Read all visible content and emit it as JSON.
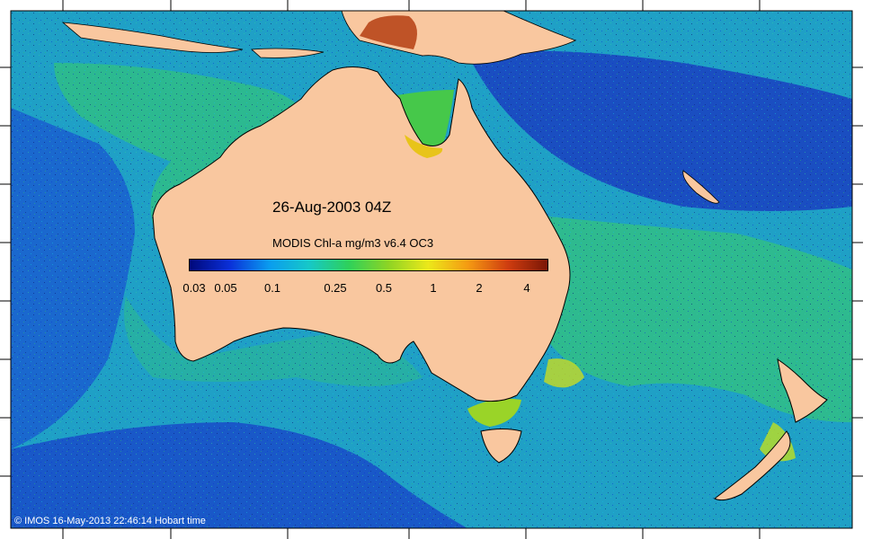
{
  "date_label": "26-Aug-2003 04Z",
  "colorbar": {
    "title": "MODIS Chl-a mg/m3 v6.4 OC3",
    "ticks": [
      "0.03",
      "0.05",
      "0.1",
      "0.25",
      "0.5",
      "1",
      "2",
      "4"
    ],
    "colors": [
      "#00087a",
      "#0a2fd8",
      "#0a9cef",
      "#16c8c8",
      "#2ed15a",
      "#8ed424",
      "#ece81a",
      "#f59a12",
      "#cf3d10",
      "#7a1605"
    ]
  },
  "credit": "© IMOS 16-May-2013 22:46:14 Hobart time",
  "colors": {
    "land": "#f9c79f",
    "ocean_deep": "#1a44c8",
    "ocean_mid": "#1fa3c4",
    "ocean_green": "#35c27a",
    "high_chl": "#e8d218"
  }
}
